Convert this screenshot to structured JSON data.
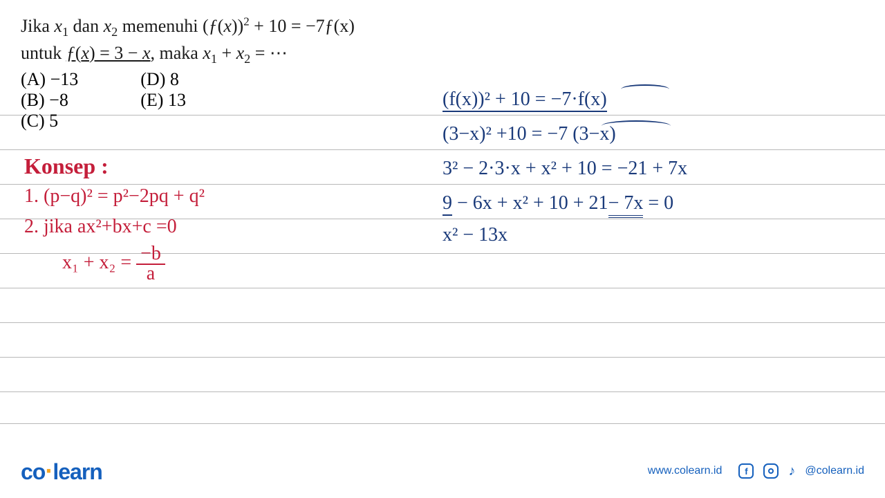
{
  "problem": {
    "line1_pre": "Jika ",
    "line1_x1": "x",
    "line1_sub1": "1",
    "line1_mid1": " dan ",
    "line1_x2": "x",
    "line1_sub2": "2",
    "line1_mid2": " memenuhi ",
    "line1_expr": "(ƒ(x))",
    "line1_sup": "2",
    "line1_rest": " + 10 = −7ƒ(x)",
    "line2_pre": "untuk ",
    "line2_fx": "ƒ(x) = 3 − x,",
    "line2_mid": " maka ",
    "line2_x1": "x",
    "line2_sub1": "1",
    "line2_plus": " + ",
    "line2_x2": "x",
    "line2_sub2": "2",
    "line2_eq": " = ⋯"
  },
  "options": {
    "a": "(A) −13",
    "b": "(B) −8",
    "c": "(C) 5",
    "d": "(D) 8",
    "e": "(E) 13"
  },
  "concept": {
    "title": "Konsep :",
    "line1": "1. (p−q)² = p²−2pq + q²",
    "line2": "2. jika  ax²+bx+c =0",
    "line3_pre": "x₁ + x₂ = ",
    "line3_num": "−b",
    "line3_den": "a"
  },
  "work": {
    "l1": "(f(x))² + 10 = −7·f(x)",
    "l2": "(3−x)² +10 = −7 (3−x)",
    "l3": "3² − 2·3·x + x² + 10 = −21 + 7x",
    "l4_a": "9",
    "l4_b": " − 6x + x² + 10 + 21",
    "l4_c": " − 7x",
    "l4_d": "  = 0",
    "l5": "x² − 13x"
  },
  "lines": {
    "positions": [
      166,
      216,
      266,
      316,
      366,
      416,
      466,
      516,
      566,
      612
    ],
    "color": "#b8b8b8"
  },
  "colors": {
    "red": "#c41e3a",
    "blue": "#1a3a7a",
    "brand": "#1560bd",
    "accent": "#f5a623"
  },
  "footer": {
    "logo_co": "co",
    "logo_learn": "learn",
    "url": "www.colearn.id",
    "handle": "@colearn.id",
    "fb": "f",
    "ig": "◯",
    "tk": "♪"
  }
}
